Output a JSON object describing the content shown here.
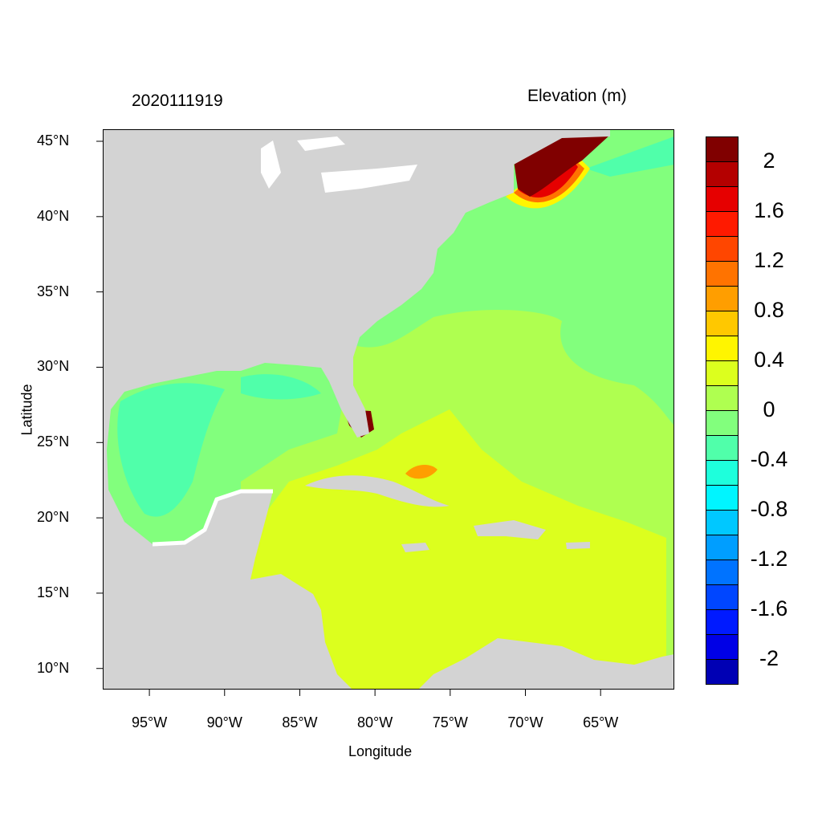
{
  "title_left": "2020111919",
  "title_right": "Elevation (m)",
  "xlabel": "Longitude",
  "ylabel": "Latitude",
  "x_ticks": [
    {
      "value": -95,
      "label": "95°W"
    },
    {
      "value": -90,
      "label": "90°W"
    },
    {
      "value": -85,
      "label": "85°W"
    },
    {
      "value": -80,
      "label": "80°W"
    },
    {
      "value": -75,
      "label": "75°W"
    },
    {
      "value": -70,
      "label": "70°W"
    },
    {
      "value": -65,
      "label": "65°W"
    }
  ],
  "y_ticks": [
    {
      "value": 45,
      "label": "45°N"
    },
    {
      "value": 40,
      "label": "40°N"
    },
    {
      "value": 35,
      "label": "35°N"
    },
    {
      "value": 30,
      "label": "30°N"
    },
    {
      "value": 25,
      "label": "25°N"
    },
    {
      "value": 20,
      "label": "20°N"
    },
    {
      "value": 15,
      "label": "15°N"
    },
    {
      "value": 10,
      "label": "10°N"
    }
  ],
  "extent": {
    "lon": [
      -98.1,
      -60.1
    ],
    "lat": [
      8.6,
      45.8
    ]
  },
  "colorbar": {
    "levels_top_to_bottom": [
      2.2,
      2.0,
      1.8,
      1.6,
      1.4,
      1.2,
      1.0,
      0.8,
      0.6,
      0.4,
      0.2,
      0,
      -0.2,
      -0.4,
      -0.6,
      -0.8,
      -1.0,
      -1.2,
      -1.4,
      -1.6,
      -1.8,
      -2.0,
      -2.2
    ],
    "colors_top_to_bottom": [
      "#800000",
      "#b40000",
      "#e60000",
      "#ff1a00",
      "#ff4600",
      "#ff7300",
      "#ff9e00",
      "#ffc800",
      "#fff500",
      "#dcff1e",
      "#afff50",
      "#82ff7d",
      "#50ffaa",
      "#1effdc",
      "#00f5ff",
      "#00c8ff",
      "#009eff",
      "#0073ff",
      "#0046ff",
      "#001aff",
      "#0000e6",
      "#0000b4"
    ],
    "labels": [
      "2",
      "1.6",
      "1.2",
      "0.8",
      "0.4",
      "0",
      "-0.4",
      "-0.8",
      "-1.2",
      "-1.6",
      "-2"
    ],
    "label_values": [
      2,
      1.6,
      1.2,
      0.8,
      0.4,
      0,
      -0.4,
      -0.8,
      -1.2,
      -1.6,
      -2
    ]
  },
  "colors": {
    "land": "#d3d3d3",
    "lakes": "#ffffff"
  }
}
